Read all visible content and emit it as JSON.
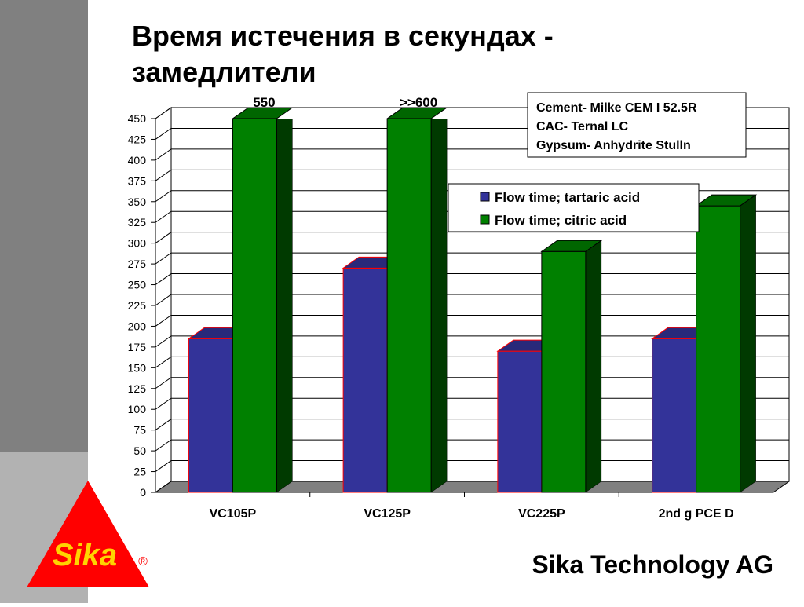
{
  "header": {
    "title": "Время истечения в секундах - замедлители"
  },
  "footer": {
    "company": "Sika Technology AG",
    "logo": "Sika",
    "registered": "®"
  },
  "chart_data": {
    "type": "bar3d",
    "categories": [
      "VC105P",
      "VC125P",
      "VC225P",
      "2nd g PCE D"
    ],
    "series": [
      {
        "name": "Flow time; tartaric acid",
        "color": "#333399",
        "values": [
          185,
          270,
          170,
          185
        ]
      },
      {
        "name": "Flow time; citric acid",
        "color": "#008000",
        "values": [
          550,
          600,
          290,
          345
        ],
        "value_labels": [
          "550",
          ">>600",
          null,
          null
        ]
      }
    ],
    "ylim": [
      0,
      450
    ],
    "yticks": [
      0,
      25,
      50,
      75,
      100,
      125,
      150,
      175,
      200,
      225,
      250,
      275,
      300,
      325,
      350,
      375,
      400,
      425,
      450
    ],
    "grid": true,
    "legend": "top-right",
    "annotation": [
      "Cement- Milke CEM I 52.5R",
      "CAC- Ternal LC",
      "Gypsum- Anhydrite Stulln"
    ]
  }
}
